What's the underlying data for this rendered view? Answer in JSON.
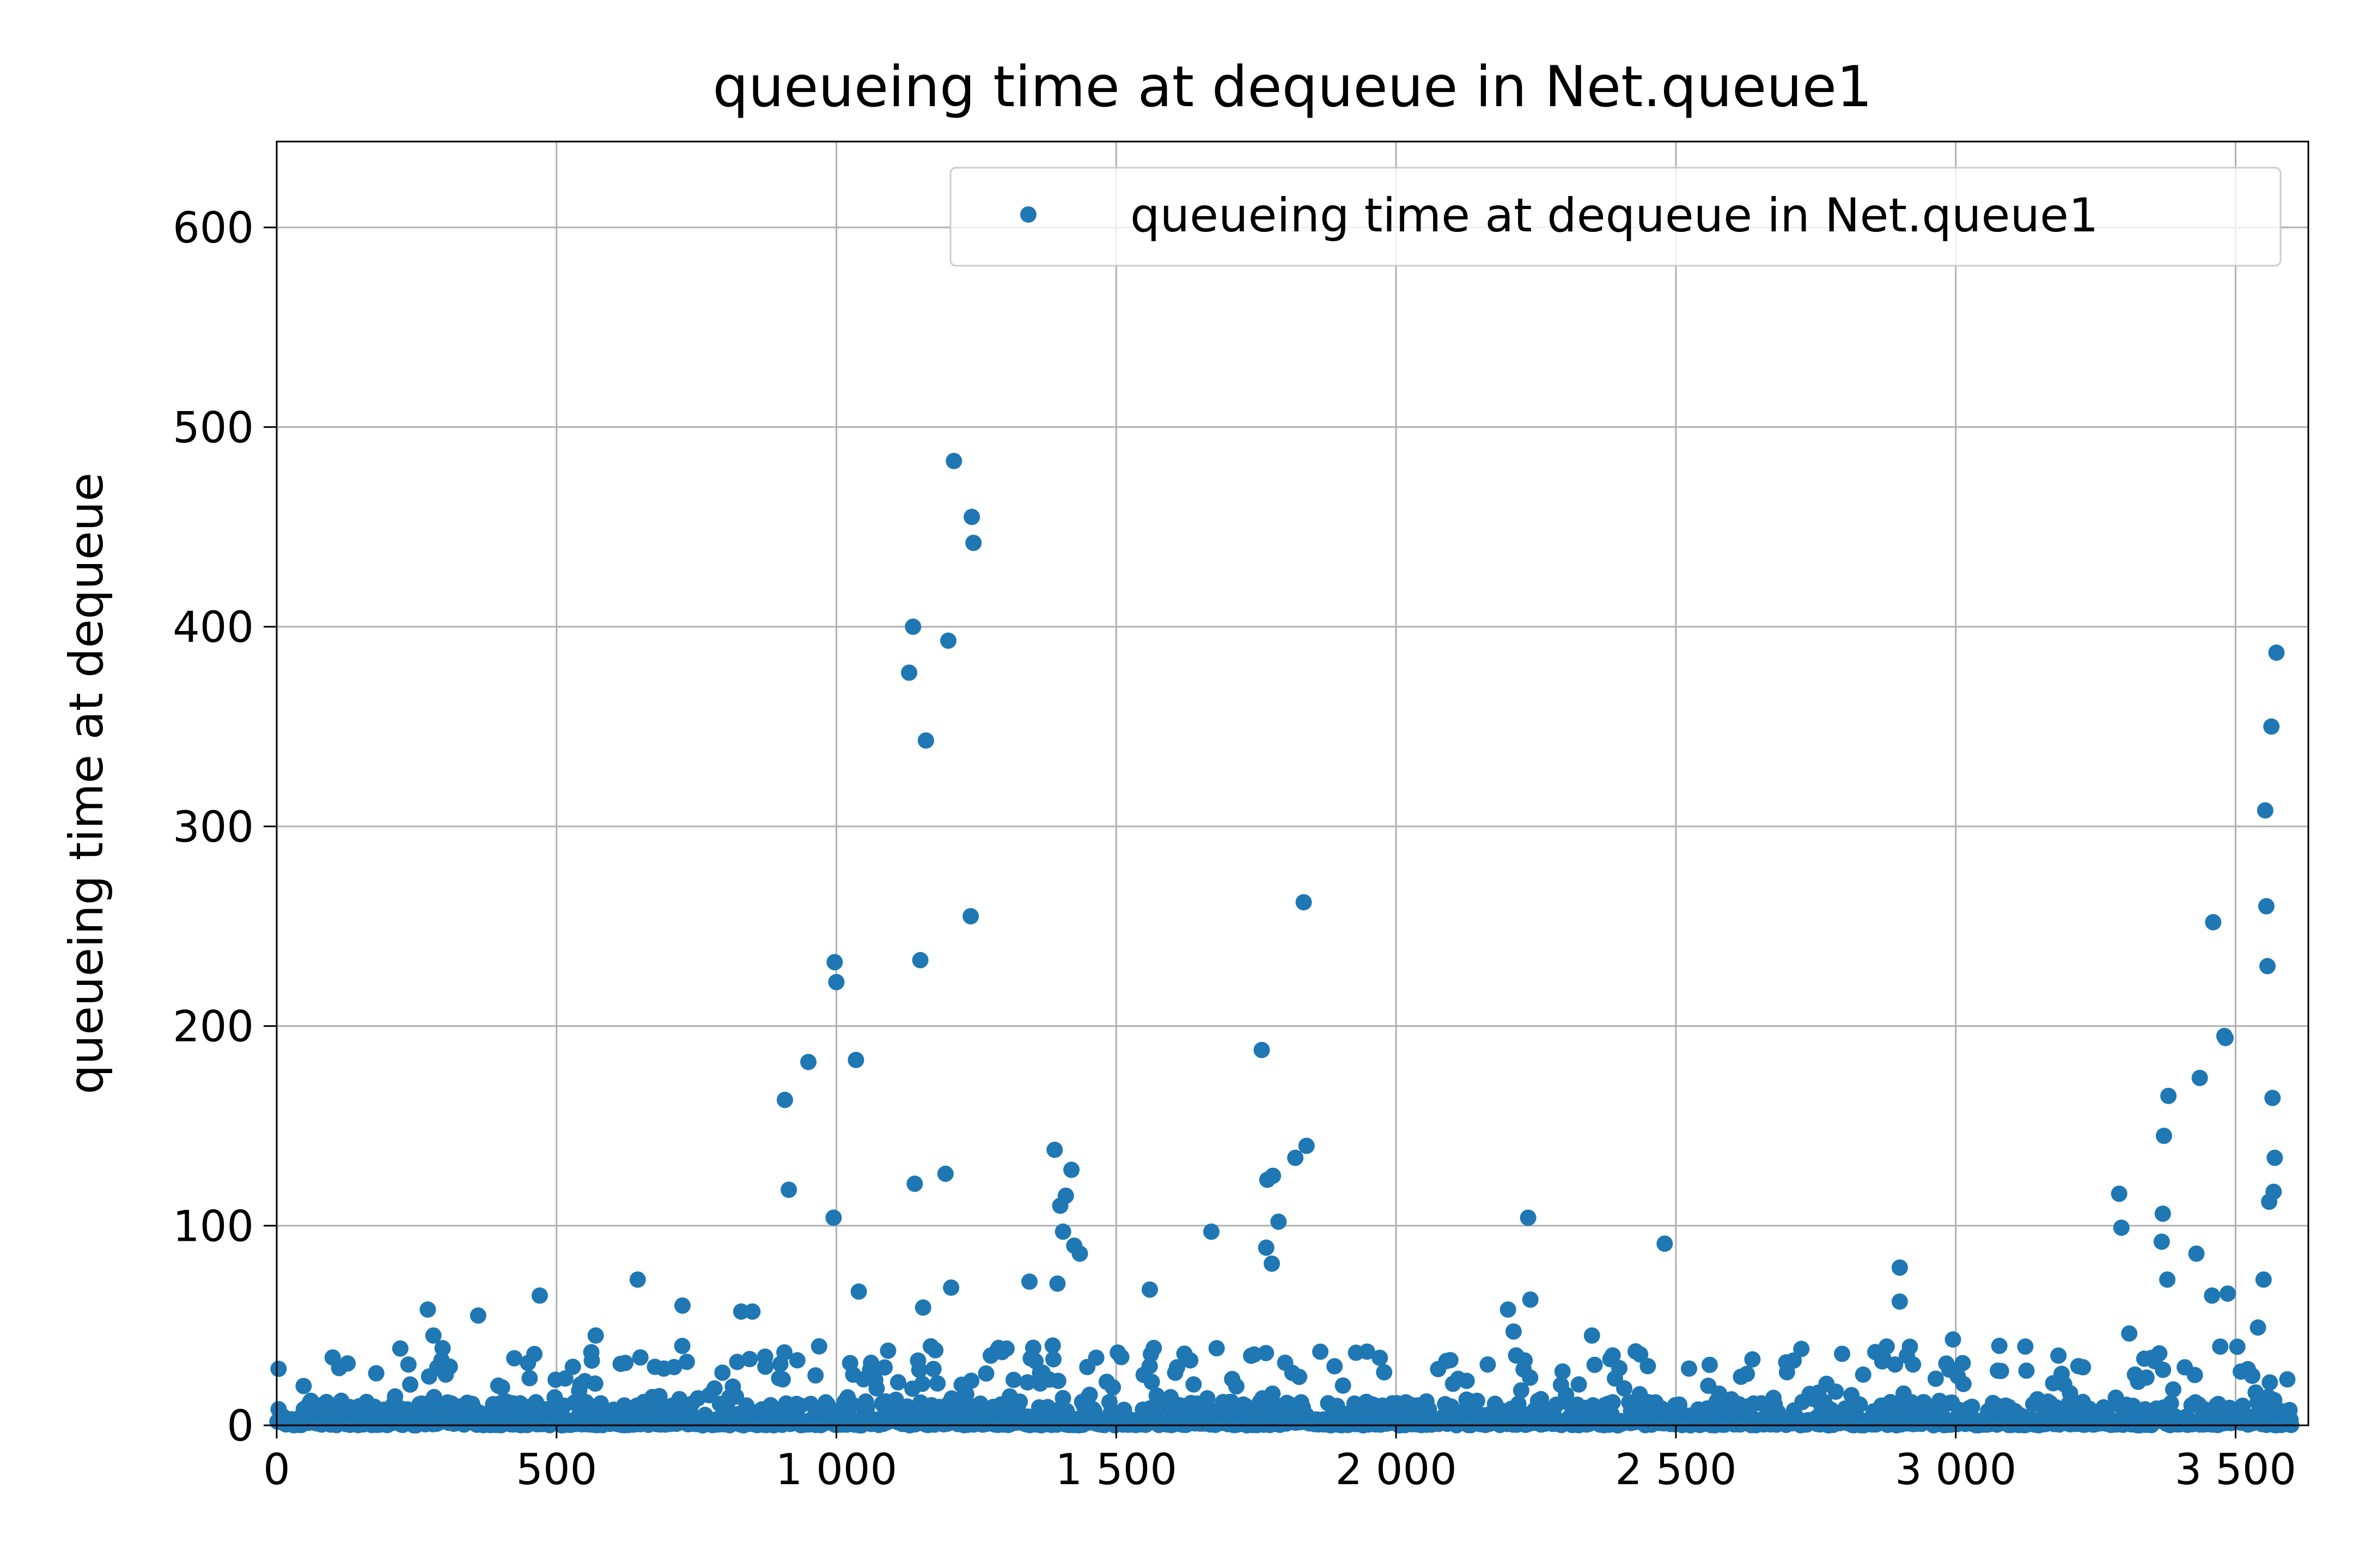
{
  "chart_data": {
    "type": "scatter",
    "title": "queueing time at dequeue in Net.queue1",
    "xlabel": "",
    "ylabel": "queueing time at dequeue",
    "xlim": [
      0,
      3630
    ],
    "ylim": [
      0,
      643
    ],
    "xticks": [
      0,
      500,
      1000,
      1500,
      2000,
      2500,
      3000,
      3500
    ],
    "xtick_labels": [
      "0",
      "500",
      "1 000",
      "1 500",
      "2 000",
      "2 500",
      "3 000",
      "3 500"
    ],
    "yticks": [
      0,
      100,
      200,
      300,
      400,
      500,
      600
    ],
    "ytick_labels": [
      "0",
      "100",
      "200",
      "300",
      "400",
      "500",
      "600"
    ],
    "grid": true,
    "legend_position": "top-right",
    "colors": {
      "series": "#1f77b4",
      "grid": "#b0b0b0",
      "axes": "#000000",
      "legend_border": "#cccccc"
    },
    "series": [
      {
        "name": "queueing time at dequeue in Net.queue1",
        "x": [
          908,
          915,
          950,
          995,
          997,
          1000,
          1035,
          1040,
          1130,
          1137,
          1140,
          1150,
          1155,
          1160,
          1195,
          1200,
          1205,
          1210,
          1240,
          1242,
          1245,
          1345,
          1390,
          1395,
          1400,
          1405,
          1410,
          1420,
          1425,
          1435,
          1560,
          1670,
          1760,
          1768,
          1770,
          1778,
          1780,
          1790,
          1820,
          1835,
          1840,
          2236,
          2480,
          2900,
          3292,
          3296,
          3368,
          3370,
          3372,
          3378,
          3380,
          3430,
          3436,
          3460,
          3480,
          3486,
          3540,
          3550,
          3553,
          3555,
          3557,
          3560,
          3564,
          3566,
          3568,
          3570,
          3573,
          270,
          280,
          470,
          360,
          100,
          570,
          645,
          725,
          830,
          850,
          2200,
          2210,
          2240,
          2350,
          2900,
          2995,
          3310,
          3458,
          3482
        ],
        "y": [
          163,
          118,
          182,
          104,
          232,
          222,
          183,
          67,
          377,
          400,
          121,
          233,
          59,
          343,
          126,
          393,
          69,
          483,
          255,
          455,
          442,
          72,
          138,
          71,
          110,
          97,
          115,
          128,
          90,
          86,
          68,
          97,
          188,
          89,
          123,
          81,
          125,
          102,
          134,
          262,
          140,
          104,
          91,
          79,
          116,
          99,
          92,
          106,
          145,
          73,
          165,
          86,
          174,
          252,
          195,
          66,
          49,
          73,
          308,
          260,
          230,
          112,
          350,
          164,
          117,
          134,
          387,
          58,
          45,
          65,
          55,
          34,
          45,
          73,
          60,
          57,
          57,
          58,
          47,
          63,
          45,
          62,
          43,
          46,
          65,
          194
        ],
        "dense_band": {
          "x_start": 0,
          "x_end": 3600,
          "n": 2400,
          "typical_max": 40
        }
      }
    ]
  }
}
